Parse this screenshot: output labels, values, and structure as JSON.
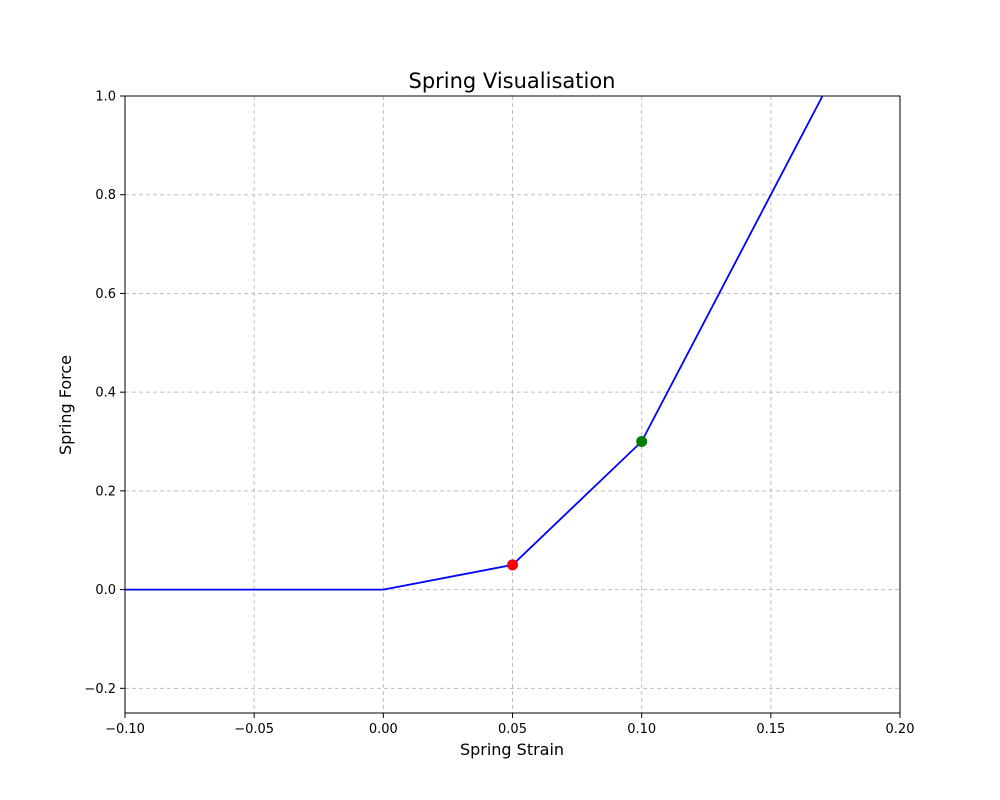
{
  "chart_data": {
    "type": "line",
    "title": "Spring Visualisation",
    "xlabel": "Spring Strain",
    "ylabel": "Spring Force",
    "xlim": [
      -0.1,
      0.2
    ],
    "ylim": [
      -0.25,
      1.0
    ],
    "xticks": [
      -0.1,
      -0.05,
      0.0,
      0.05,
      0.1,
      0.15,
      0.2
    ],
    "xtick_labels": [
      "−0.10",
      "−0.05",
      "0.00",
      "0.05",
      "0.10",
      "0.15",
      "0.20"
    ],
    "yticks": [
      -0.2,
      0.0,
      0.2,
      0.4,
      0.6,
      0.8,
      1.0
    ],
    "ytick_labels": [
      "−0.2",
      "0.0",
      "0.2",
      "0.4",
      "0.6",
      "0.8",
      "1.0"
    ],
    "grid": true,
    "series": [
      {
        "color": "#0000ff",
        "x": [
          -0.1,
          0.0,
          0.05,
          0.1,
          0.17
        ],
        "y": [
          0.0,
          0.0,
          0.05,
          0.3,
          1.0
        ]
      }
    ],
    "markers": [
      {
        "x": 0.05,
        "y": 0.05,
        "color": "#ff0000"
      },
      {
        "x": 0.1,
        "y": 0.3,
        "color": "#008000"
      }
    ]
  }
}
